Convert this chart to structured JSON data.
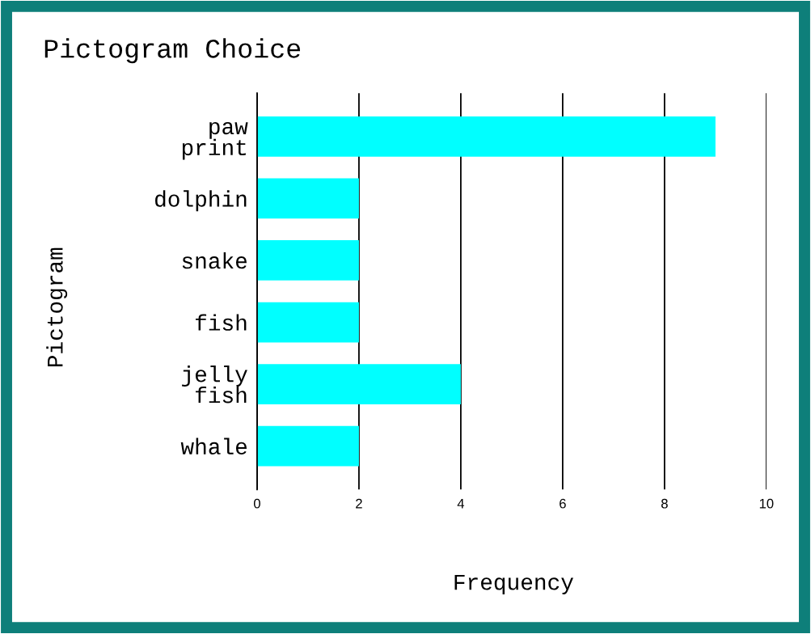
{
  "chart_data": {
    "type": "bar",
    "orientation": "horizontal",
    "title": "Pictogram Choice",
    "xlabel": "Frequency",
    "ylabel": "Pictogram",
    "categories": [
      "paw\nprint",
      "dolphin",
      "snake",
      "fish",
      "jelly\nfish",
      "whale"
    ],
    "values": [
      9,
      2,
      2,
      2,
      4,
      2
    ],
    "color": "#00ffff",
    "xlim": [
      0,
      10
    ],
    "xticks": [
      0,
      2,
      4,
      6,
      8,
      10
    ],
    "grid": "x",
    "legend": false
  }
}
